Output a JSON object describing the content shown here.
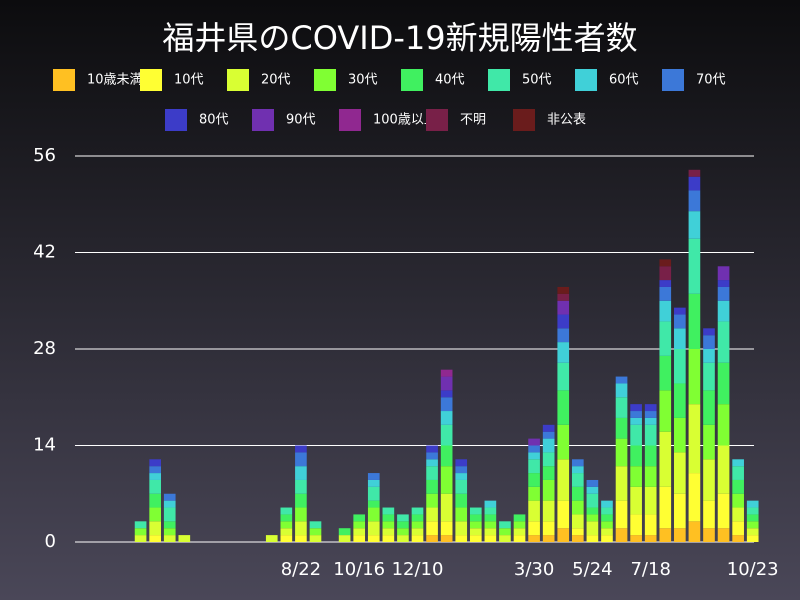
{
  "chart_data": {
    "type": "stacked_bar",
    "title": "福井県のCOVID-19新規陽性者数",
    "categories": [
      null,
      null,
      null,
      null,
      null,
      null,
      null,
      null,
      null,
      null,
      null,
      null,
      null,
      null,
      null,
      "8/22",
      null,
      null,
      null,
      "10/16",
      null,
      null,
      null,
      "12/10",
      null,
      null,
      null,
      null,
      null,
      null,
      null,
      "3/30",
      null,
      null,
      null,
      "5/24",
      null,
      null,
      null,
      "7/18",
      null,
      null,
      null,
      null,
      null,
      null,
      "10/23"
    ],
    "ylim": [
      0,
      56
    ],
    "yticks": [
      0,
      14,
      28,
      42,
      56
    ],
    "grid": true,
    "series": [
      {
        "name": "10歳未満",
        "color": "#ffc022",
        "values": [
          0,
          0,
          0,
          0,
          0,
          0,
          0,
          0,
          0,
          0,
          0,
          0,
          0,
          0,
          0,
          0,
          0,
          0,
          0,
          0,
          0,
          0,
          0,
          0,
          1,
          1,
          0,
          0,
          0,
          0,
          0,
          1,
          1,
          2,
          1,
          0,
          0,
          2,
          1,
          1,
          2,
          2,
          3,
          2,
          2,
          1,
          0
        ]
      },
      {
        "name": "10代",
        "color": "#ffff33",
        "values": [
          0,
          0,
          0,
          0,
          0,
          1,
          0,
          0,
          0,
          0,
          0,
          0,
          0,
          0,
          1,
          1,
          0,
          0,
          0,
          1,
          1,
          1,
          0,
          1,
          2,
          2,
          1,
          1,
          1,
          0,
          1,
          2,
          2,
          4,
          1,
          1,
          1,
          4,
          3,
          3,
          6,
          5,
          7,
          4,
          5,
          2,
          1
        ]
      },
      {
        "name": "20代",
        "color": "#d9ff33",
        "values": [
          0,
          0,
          0,
          0,
          1,
          2,
          1,
          1,
          0,
          0,
          0,
          0,
          0,
          1,
          1,
          2,
          1,
          0,
          1,
          1,
          2,
          1,
          1,
          1,
          2,
          4,
          2,
          1,
          1,
          1,
          1,
          3,
          3,
          6,
          2,
          2,
          1,
          5,
          4,
          4,
          8,
          6,
          10,
          6,
          7,
          2,
          1
        ]
      },
      {
        "name": "30代",
        "color": "#80ff33",
        "values": [
          0,
          0,
          0,
          0,
          1,
          2,
          1,
          0,
          0,
          0,
          0,
          0,
          0,
          0,
          1,
          2,
          1,
          0,
          0,
          1,
          2,
          1,
          1,
          1,
          2,
          4,
          2,
          1,
          1,
          1,
          1,
          2,
          3,
          5,
          2,
          1,
          1,
          4,
          3,
          3,
          6,
          5,
          8,
          5,
          6,
          2,
          1
        ]
      },
      {
        "name": "40代",
        "color": "#40f060",
        "values": [
          0,
          0,
          0,
          0,
          0,
          2,
          1,
          0,
          0,
          0,
          0,
          0,
          0,
          0,
          1,
          2,
          0,
          0,
          1,
          1,
          1,
          1,
          1,
          1,
          2,
          3,
          2,
          1,
          1,
          0,
          1,
          2,
          2,
          5,
          2,
          1,
          1,
          3,
          3,
          3,
          5,
          5,
          8,
          5,
          6,
          2,
          1
        ]
      },
      {
        "name": "50代",
        "color": "#40e8a8",
        "values": [
          0,
          0,
          0,
          0,
          1,
          2,
          2,
          0,
          0,
          0,
          0,
          0,
          0,
          0,
          1,
          2,
          1,
          0,
          0,
          0,
          2,
          1,
          1,
          1,
          2,
          3,
          2,
          1,
          1,
          1,
          0,
          2,
          2,
          4,
          2,
          2,
          1,
          3,
          3,
          3,
          5,
          5,
          8,
          4,
          6,
          2,
          1
        ]
      },
      {
        "name": "60代",
        "color": "#40d0d8",
        "values": [
          0,
          0,
          0,
          0,
          0,
          1,
          1,
          0,
          0,
          0,
          0,
          0,
          0,
          0,
          0,
          2,
          0,
          0,
          0,
          0,
          1,
          0,
          0,
          0,
          1,
          2,
          1,
          0,
          1,
          0,
          0,
          1,
          2,
          3,
          1,
          1,
          1,
          2,
          1,
          1,
          3,
          3,
          4,
          2,
          3,
          1,
          1
        ]
      },
      {
        "name": "70代",
        "color": "#3c78d8",
        "values": [
          0,
          0,
          0,
          0,
          0,
          1,
          1,
          0,
          0,
          0,
          0,
          0,
          0,
          0,
          0,
          2,
          0,
          0,
          0,
          0,
          1,
          0,
          0,
          0,
          1,
          2,
          1,
          0,
          0,
          0,
          0,
          1,
          1,
          2,
          1,
          1,
          0,
          1,
          1,
          1,
          2,
          2,
          3,
          2,
          2,
          0,
          0
        ]
      },
      {
        "name": "80代",
        "color": "#3c3cc8",
        "values": [
          0,
          0,
          0,
          0,
          0,
          1,
          0,
          0,
          0,
          0,
          0,
          0,
          0,
          0,
          0,
          1,
          0,
          0,
          0,
          0,
          0,
          0,
          0,
          0,
          1,
          1,
          1,
          0,
          0,
          0,
          0,
          0,
          1,
          2,
          0,
          0,
          0,
          0,
          1,
          1,
          1,
          1,
          2,
          1,
          1,
          0,
          0
        ]
      },
      {
        "name": "90代",
        "color": "#7030b0",
        "values": [
          0,
          0,
          0,
          0,
          0,
          0,
          0,
          0,
          0,
          0,
          0,
          0,
          0,
          0,
          0,
          0,
          0,
          0,
          0,
          0,
          0,
          0,
          0,
          0,
          0,
          2,
          0,
          0,
          0,
          0,
          0,
          1,
          0,
          2,
          0,
          0,
          0,
          0,
          0,
          0,
          0,
          0,
          0,
          0,
          2,
          0,
          0
        ]
      },
      {
        "name": "100歳以上",
        "color": "#902890",
        "values": [
          0,
          0,
          0,
          0,
          0,
          0,
          0,
          0,
          0,
          0,
          0,
          0,
          0,
          0,
          0,
          0,
          0,
          0,
          0,
          0,
          0,
          0,
          0,
          0,
          0,
          1,
          0,
          0,
          0,
          0,
          0,
          0,
          0,
          0,
          0,
          0,
          0,
          0,
          0,
          0,
          0,
          0,
          0,
          0,
          0,
          0,
          0
        ]
      },
      {
        "name": "不明",
        "color": "#782048",
        "values": [
          0,
          0,
          0,
          0,
          0,
          0,
          0,
          0,
          0,
          0,
          0,
          0,
          0,
          0,
          0,
          0,
          0,
          0,
          0,
          0,
          0,
          0,
          0,
          0,
          0,
          0,
          0,
          0,
          0,
          0,
          0,
          0,
          0,
          1,
          0,
          0,
          0,
          0,
          0,
          0,
          2,
          0,
          1,
          0,
          0,
          0,
          0
        ]
      },
      {
        "name": "非公表",
        "color": "#6a1c1c",
        "values": [
          0,
          0,
          0,
          0,
          0,
          0,
          0,
          0,
          0,
          0,
          0,
          0,
          0,
          0,
          0,
          0,
          0,
          0,
          0,
          0,
          0,
          0,
          0,
          0,
          0,
          0,
          0,
          0,
          0,
          0,
          0,
          0,
          0,
          1,
          0,
          0,
          0,
          0,
          0,
          0,
          1,
          0,
          0,
          0,
          0,
          0,
          0
        ]
      }
    ]
  }
}
